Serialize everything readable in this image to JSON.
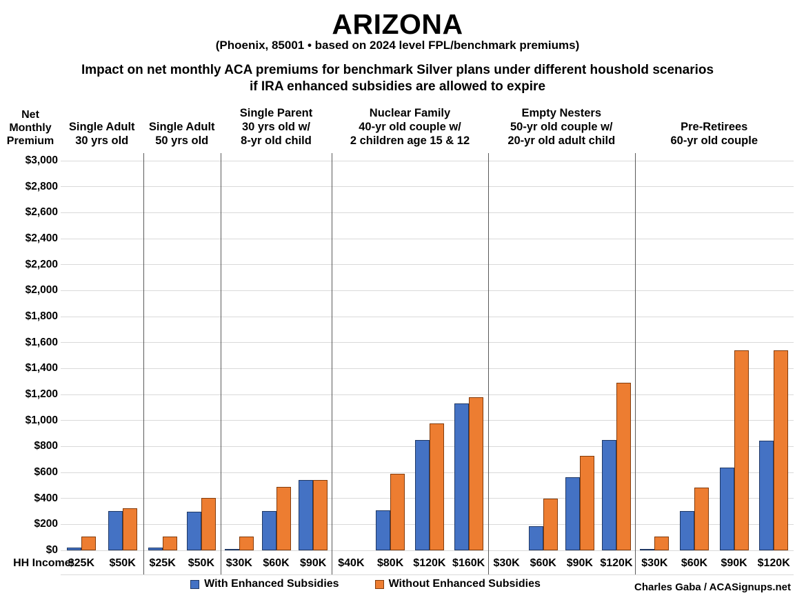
{
  "title": "ARIZONA",
  "subtitle": "(Phoenix, 85001 • based on 2024 level FPL/benchmark premiums)",
  "heading": "Impact on net monthly ACA premiums for benchmark Silver plans under different houshold scenarios\nif IRA enhanced subsidies are allowed to expire",
  "y_axis_header": "Net\nMonthly\nPremium",
  "x_axis_prefix": "HH Income:",
  "credit": "Charles Gaba / ACASignups.net",
  "legend": [
    {
      "label": "With Enhanced Subsidies",
      "color": "#4472C4",
      "border": "#1F3864"
    },
    {
      "label": "Without Enhanced Subsidies",
      "color": "#ED7D31",
      "border": "#823B0B"
    }
  ],
  "colors": {
    "with_enhanced_fill": "#4472C4",
    "with_enhanced_border": "#1F3864",
    "without_enhanced_fill": "#ED7D31",
    "without_enhanced_border": "#823B0B",
    "gridline": "#d9d9d9",
    "group_separator": "#595959",
    "text": "#000000"
  },
  "chart_data": {
    "type": "bar",
    "title": "Impact on net monthly ACA premiums for benchmark Silver plans under different houshold scenarios if IRA enhanced subsidies are allowed to expire",
    "location_note": "Phoenix, 85001 • based on 2024 level FPL/benchmark premiums",
    "ylabel": "Net Monthly Premium",
    "xlabel": "HH Income",
    "ylim": [
      0,
      3000
    ],
    "ytick_step": 200,
    "ytick_labels": [
      "$3,000",
      "$2,800",
      "$2,600",
      "$2,400",
      "$2,200",
      "$2,000",
      "$1,800",
      "$1,600",
      "$1,400",
      "$1,200",
      "$1,000",
      "$800",
      "$600",
      "$400",
      "$200",
      "$0"
    ],
    "grid": true,
    "legend_position": "bottom",
    "series_names": [
      "With Enhanced Subsidies",
      "Without Enhanced Subsidies"
    ],
    "groups": [
      {
        "header": "Single Adult\n30 yrs old",
        "categories": [
          "$25K",
          "$50K"
        ],
        "with_enhanced": [
          20,
          300
        ],
        "without_enhanced": [
          105,
          325
        ]
      },
      {
        "header": "Single Adult\n50 yrs old",
        "categories": [
          "$25K",
          "$50K"
        ],
        "with_enhanced": [
          20,
          295
        ],
        "without_enhanced": [
          105,
          405
        ]
      },
      {
        "header": "Single Parent\n30 yrs old w/\n8-yr old child",
        "categories": [
          "$30K",
          "$60K",
          "$90K"
        ],
        "with_enhanced": [
          5,
          305,
          540
        ],
        "without_enhanced": [
          105,
          490,
          540
        ]
      },
      {
        "header": "Nuclear Family\n40-yr old couple w/\n2 children age 15 & 12",
        "categories": [
          "$40K",
          "$80K",
          "$120K",
          "$160K"
        ],
        "with_enhanced": [
          0,
          310,
          850,
          1130
        ],
        "without_enhanced": [
          0,
          590,
          975,
          1180
        ]
      },
      {
        "header": "Empty Nesters\n50-yr old couple w/\n20-yr old adult child",
        "categories": [
          "$30K",
          "$60K",
          "$90K",
          "$120K"
        ],
        "with_enhanced": [
          0,
          185,
          565,
          850
        ],
        "without_enhanced": [
          0,
          400,
          730,
          1290
        ]
      },
      {
        "header": "Pre-Retirees\n60-yr old couple",
        "categories": [
          "$30K",
          "$60K",
          "$90K",
          "$120K"
        ],
        "with_enhanced": [
          5,
          305,
          635,
          845
        ],
        "without_enhanced": [
          105,
          485,
          1540,
          1540
        ]
      }
    ]
  }
}
